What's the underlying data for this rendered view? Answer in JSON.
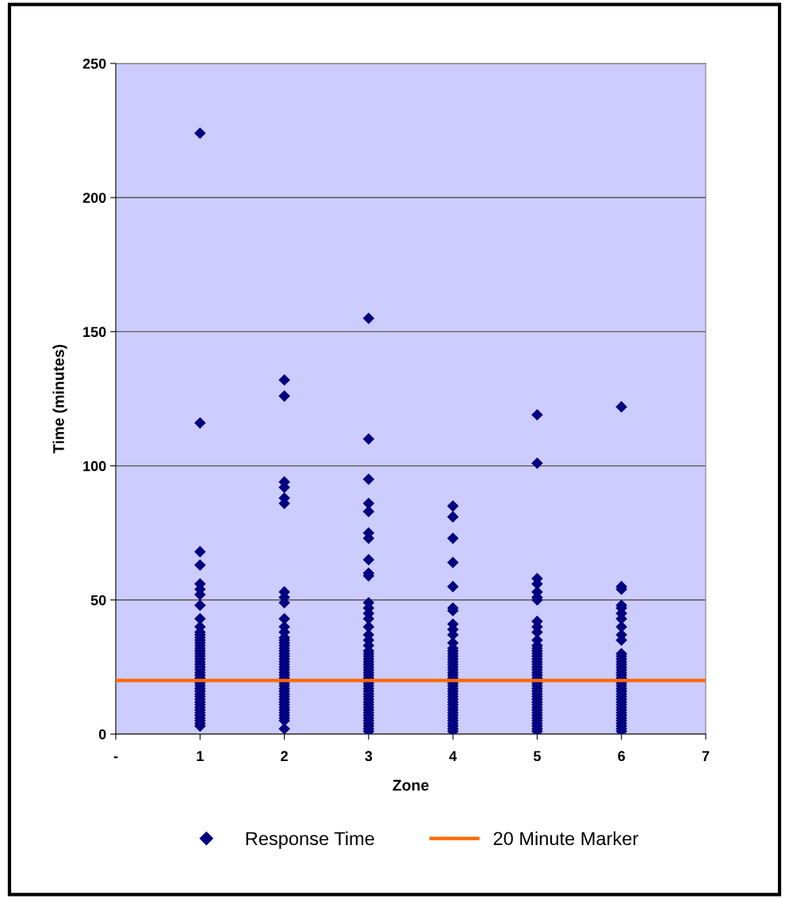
{
  "chart_data": {
    "type": "scatter",
    "xlabel": "Zone",
    "ylabel": "Time (minutes)",
    "xlim": [
      0,
      7
    ],
    "xticks": [
      {
        "value": 0,
        "label": "-"
      },
      1,
      2,
      3,
      4,
      5,
      6,
      7
    ],
    "ylim": [
      0,
      250
    ],
    "yticks": [
      0,
      50,
      100,
      150,
      200,
      250
    ],
    "grid": "y",
    "legend": "bottom",
    "marker": "diamond",
    "series": [
      {
        "name": "Response Time",
        "color": "#000080",
        "x": [
          1,
          1,
          1,
          1,
          1,
          1,
          1,
          1,
          1,
          1,
          1,
          1,
          1,
          1,
          1,
          1,
          1,
          1,
          1,
          1,
          1,
          1,
          1,
          1,
          1,
          1,
          1,
          1,
          1,
          1,
          1,
          1,
          1,
          1,
          1,
          1,
          1,
          1,
          1,
          1,
          1,
          1,
          1,
          1,
          1,
          2,
          2,
          2,
          2,
          2,
          2,
          2,
          2,
          2,
          2,
          2,
          2,
          2,
          2,
          2,
          2,
          2,
          2,
          2,
          2,
          2,
          2,
          2,
          2,
          2,
          2,
          2,
          2,
          2,
          2,
          2,
          2,
          2,
          2,
          2,
          2,
          2,
          2,
          2,
          2,
          2,
          2,
          2,
          2,
          3,
          3,
          3,
          3,
          3,
          3,
          3,
          3,
          3,
          3,
          3,
          3,
          3,
          3,
          3,
          3,
          3,
          3,
          3,
          3,
          3,
          3,
          3,
          3,
          3,
          3,
          3,
          3,
          3,
          3,
          3,
          3,
          3,
          3,
          3,
          3,
          3,
          3,
          3,
          3,
          3,
          3,
          3,
          3,
          3,
          3,
          3,
          3,
          4,
          4,
          4,
          4,
          4,
          4,
          4,
          4,
          4,
          4,
          4,
          4,
          4,
          4,
          4,
          4,
          4,
          4,
          4,
          4,
          4,
          4,
          4,
          4,
          4,
          4,
          4,
          4,
          4,
          4,
          4,
          4,
          4,
          4,
          4,
          4,
          4,
          4,
          4,
          4,
          4,
          4,
          5,
          5,
          5,
          5,
          5,
          5,
          5,
          5,
          5,
          5,
          5,
          5,
          5,
          5,
          5,
          5,
          5,
          5,
          5,
          5,
          5,
          5,
          5,
          5,
          5,
          5,
          5,
          5,
          5,
          5,
          5,
          5,
          5,
          5,
          5,
          5,
          5,
          5,
          5,
          5,
          5,
          5,
          5,
          6,
          6,
          6,
          6,
          6,
          6,
          6,
          6,
          6,
          6,
          6,
          6,
          6,
          6,
          6,
          6,
          6,
          6,
          6,
          6,
          6,
          6,
          6,
          6,
          6,
          6,
          6,
          6,
          6,
          6,
          6,
          6,
          6,
          6,
          6,
          6,
          6,
          6,
          6
        ],
        "values": [
          224,
          116,
          68,
          63,
          56,
          54,
          52,
          48,
          43,
          40,
          38,
          37,
          36,
          35,
          34,
          33,
          32,
          31,
          30,
          29,
          28,
          27,
          26,
          25,
          24,
          23,
          22,
          21,
          19,
          18,
          17,
          16,
          15,
          14,
          13,
          12,
          11,
          10,
          9,
          8,
          7,
          6,
          5,
          4,
          3,
          132,
          126,
          94,
          92,
          88,
          86,
          53,
          51,
          49,
          43,
          40,
          38,
          36,
          35,
          34,
          33,
          32,
          31,
          30,
          29,
          28,
          27,
          26,
          25,
          24,
          23,
          22,
          21,
          19,
          18,
          17,
          16,
          15,
          14,
          13,
          12,
          11,
          10,
          9,
          8,
          7,
          6,
          5,
          2,
          155,
          110,
          95,
          86,
          83,
          75,
          73,
          65,
          60,
          59,
          49,
          47,
          45,
          43,
          40,
          37,
          35,
          33,
          31,
          30,
          29,
          28,
          27,
          26,
          25,
          24,
          23,
          22,
          21,
          19,
          18,
          17,
          16,
          15,
          14,
          13,
          12,
          11,
          10,
          9,
          8,
          7,
          6,
          5,
          4,
          3,
          2,
          1,
          85,
          81,
          73,
          64,
          55,
          47,
          46,
          41,
          39,
          37,
          34,
          32,
          31,
          30,
          29,
          28,
          27,
          26,
          25,
          24,
          23,
          22,
          21,
          19,
          18,
          17,
          16,
          15,
          14,
          13,
          12,
          11,
          10,
          9,
          8,
          7,
          6,
          5,
          4,
          3,
          2,
          1,
          119,
          101,
          58,
          56,
          53,
          51,
          50,
          42,
          40,
          38,
          35,
          33,
          32,
          31,
          30,
          29,
          28,
          27,
          26,
          25,
          24,
          23,
          22,
          21,
          19,
          18,
          17,
          16,
          15,
          14,
          13,
          12,
          11,
          10,
          9,
          8,
          7,
          6,
          5,
          4,
          3,
          2,
          1,
          122,
          55,
          54,
          48,
          47,
          45,
          43,
          40,
          37,
          35,
          30,
          29,
          28,
          27,
          26,
          25,
          24,
          23,
          22,
          21,
          19,
          18,
          17,
          16,
          15,
          14,
          13,
          12,
          11,
          10,
          9,
          8,
          7,
          6,
          5,
          4,
          3,
          2,
          1
        ]
      }
    ],
    "ref_lines": [
      {
        "axis": "y",
        "value": 20,
        "label": "20 Minute Marker",
        "color": "#ff6600"
      }
    ]
  }
}
